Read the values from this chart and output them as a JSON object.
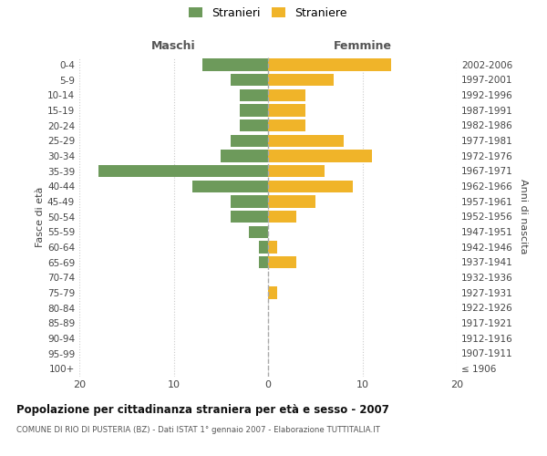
{
  "age_groups": [
    "100+",
    "95-99",
    "90-94",
    "85-89",
    "80-84",
    "75-79",
    "70-74",
    "65-69",
    "60-64",
    "55-59",
    "50-54",
    "45-49",
    "40-44",
    "35-39",
    "30-34",
    "25-29",
    "20-24",
    "15-19",
    "10-14",
    "5-9",
    "0-4"
  ],
  "birth_years": [
    "≤ 1906",
    "1907-1911",
    "1912-1916",
    "1917-1921",
    "1922-1926",
    "1927-1931",
    "1932-1936",
    "1937-1941",
    "1942-1946",
    "1947-1951",
    "1952-1956",
    "1957-1961",
    "1962-1966",
    "1967-1971",
    "1972-1976",
    "1977-1981",
    "1982-1986",
    "1987-1991",
    "1992-1996",
    "1997-2001",
    "2002-2006"
  ],
  "maschi": [
    0,
    0,
    0,
    0,
    0,
    0,
    0,
    1,
    1,
    2,
    4,
    4,
    8,
    18,
    5,
    4,
    3,
    3,
    3,
    4,
    7
  ],
  "femmine": [
    0,
    0,
    0,
    0,
    0,
    1,
    0,
    3,
    1,
    0,
    3,
    5,
    9,
    6,
    11,
    8,
    4,
    4,
    4,
    7,
    13
  ],
  "color_maschi": "#6d9a5b",
  "color_femmine": "#f0b429",
  "background_color": "#ffffff",
  "grid_color": "#cccccc",
  "title": "Popolazione per cittadinanza straniera per età e sesso - 2007",
  "subtitle": "COMUNE DI RIO DI PUSTERIA (BZ) - Dati ISTAT 1° gennaio 2007 - Elaborazione TUTTITALIA.IT",
  "ylabel_left": "Fasce di età",
  "ylabel_right": "Anni di nascita",
  "xlabel_left": "Maschi",
  "xlabel_right": "Femmine",
  "legend_maschi": "Stranieri",
  "legend_femmine": "Straniere",
  "xlim": 20,
  "bar_height": 0.8
}
